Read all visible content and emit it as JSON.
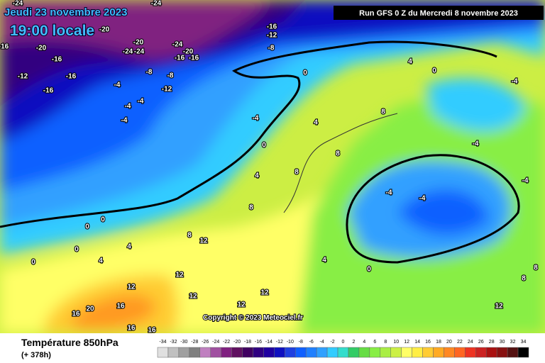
{
  "header": {
    "date": "Jeudi 23 novembre 2023",
    "time": "19:00 locale",
    "run": "Run GFS 0 Z du Mercredi 8 novembre 2023"
  },
  "map": {
    "labels": [
      -24,
      -24,
      -20,
      -16,
      -12,
      -8,
      -20,
      -24,
      -24,
      -24,
      -20,
      -16,
      -16,
      -20,
      -16,
      -16,
      -12,
      -16,
      -16,
      -8,
      -8,
      -4,
      -12,
      -4,
      -4,
      -4,
      -4,
      0,
      0,
      4,
      4,
      8,
      8,
      8,
      4,
      0,
      -4,
      -4,
      -4,
      -4,
      -4,
      0,
      4,
      8,
      8,
      12,
      4,
      0,
      0,
      0,
      4,
      0,
      12,
      12,
      12,
      12,
      12,
      16,
      16,
      20,
      16,
      16,
      8,
      8,
      12
    ],
    "copyright": "Copyright © 2023 Meteociel.fr"
  },
  "legend": {
    "title": "Température 850hPa",
    "lead": "(+ 378h)",
    "ticks": [
      -34,
      -32,
      -30,
      -28,
      -26,
      -24,
      -22,
      -20,
      -18,
      -16,
      -14,
      -12,
      -10,
      -8,
      -6,
      -4,
      -2,
      0,
      2,
      4,
      6,
      8,
      10,
      12,
      14,
      16,
      18,
      20,
      22,
      24,
      26,
      28,
      30,
      32,
      34
    ],
    "colors": [
      "#e0e0e0",
      "#c0c0c0",
      "#a0a0a0",
      "#808080",
      "#c080c0",
      "#a050a0",
      "#802080",
      "#601060",
      "#400060",
      "#300080",
      "#2000a0",
      "#1010c0",
      "#2040e0",
      "#1060ff",
      "#2080ff",
      "#30a0ff",
      "#33ccff",
      "#33ddcc",
      "#33cc66",
      "#66dd44",
      "#88ee44",
      "#aaee44",
      "#ccf044",
      "#ffff66",
      "#ffee44",
      "#ffcc33",
      "#ffaa22",
      "#ff8822",
      "#ff6622",
      "#ee3322",
      "#cc2222",
      "#aa1111",
      "#881111",
      "#551111",
      "#000000"
    ]
  }
}
